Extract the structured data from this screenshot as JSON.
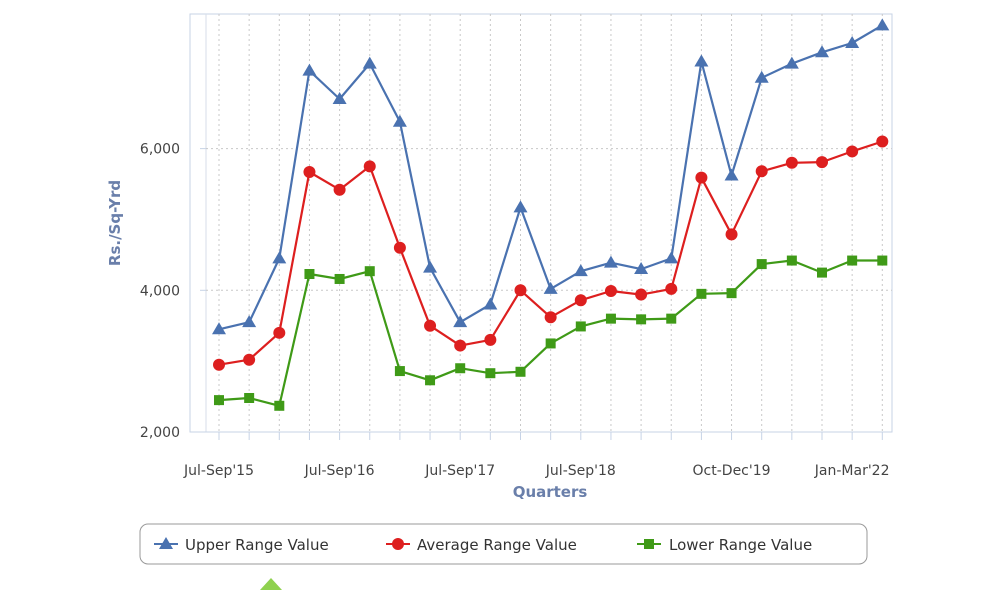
{
  "chart_data": {
    "type": "line",
    "title": "",
    "xlabel": "Quarters",
    "ylabel": "Rs./Sq-Yrd",
    "ylim": [
      2000,
      7900
    ],
    "y_ticks": [
      2000,
      4000,
      6000
    ],
    "y_tick_labels": [
      "2,000",
      "4,000",
      "6,000"
    ],
    "x_tick_labels": [
      {
        "index": 0,
        "label": "Jul-Sep'15"
      },
      {
        "index": 4,
        "label": "Jul-Sep'16"
      },
      {
        "index": 8,
        "label": "Jul-Sep'17"
      },
      {
        "index": 12,
        "label": "Jul-Sep'18"
      },
      {
        "index": 17,
        "label": "Oct-Dec'19"
      },
      {
        "index": 21,
        "label": "Jan-Mar'22"
      }
    ],
    "grid": true,
    "legend_position": "bottom",
    "categories_count": 23,
    "series": [
      {
        "name": "Upper Range Value",
        "color": "#4a72b0",
        "marker": "triangle",
        "values": [
          3450,
          3550,
          4450,
          7100,
          6700,
          7200,
          6380,
          4320,
          3550,
          3800,
          5170,
          4020,
          4270,
          4390,
          4300,
          4450,
          7230,
          5620,
          7000,
          7200,
          7360,
          7490,
          7740
        ]
      },
      {
        "name": "Average Range Value",
        "color": "#dd1f1f",
        "marker": "circle",
        "values": [
          2950,
          3020,
          3400,
          5670,
          5420,
          5750,
          4600,
          3500,
          3220,
          3300,
          4000,
          3620,
          3860,
          3990,
          3940,
          4020,
          5590,
          4790,
          5680,
          5800,
          5810,
          5960,
          6100
        ]
      },
      {
        "name": "Lower Range Value",
        "color": "#3f9a17",
        "marker": "square",
        "values": [
          2450,
          2480,
          2370,
          4230,
          4160,
          4270,
          2860,
          2730,
          2900,
          2830,
          2850,
          3250,
          3490,
          3600,
          3590,
          3600,
          3950,
          3960,
          4370,
          4420,
          4250,
          4420,
          4420
        ]
      }
    ]
  }
}
